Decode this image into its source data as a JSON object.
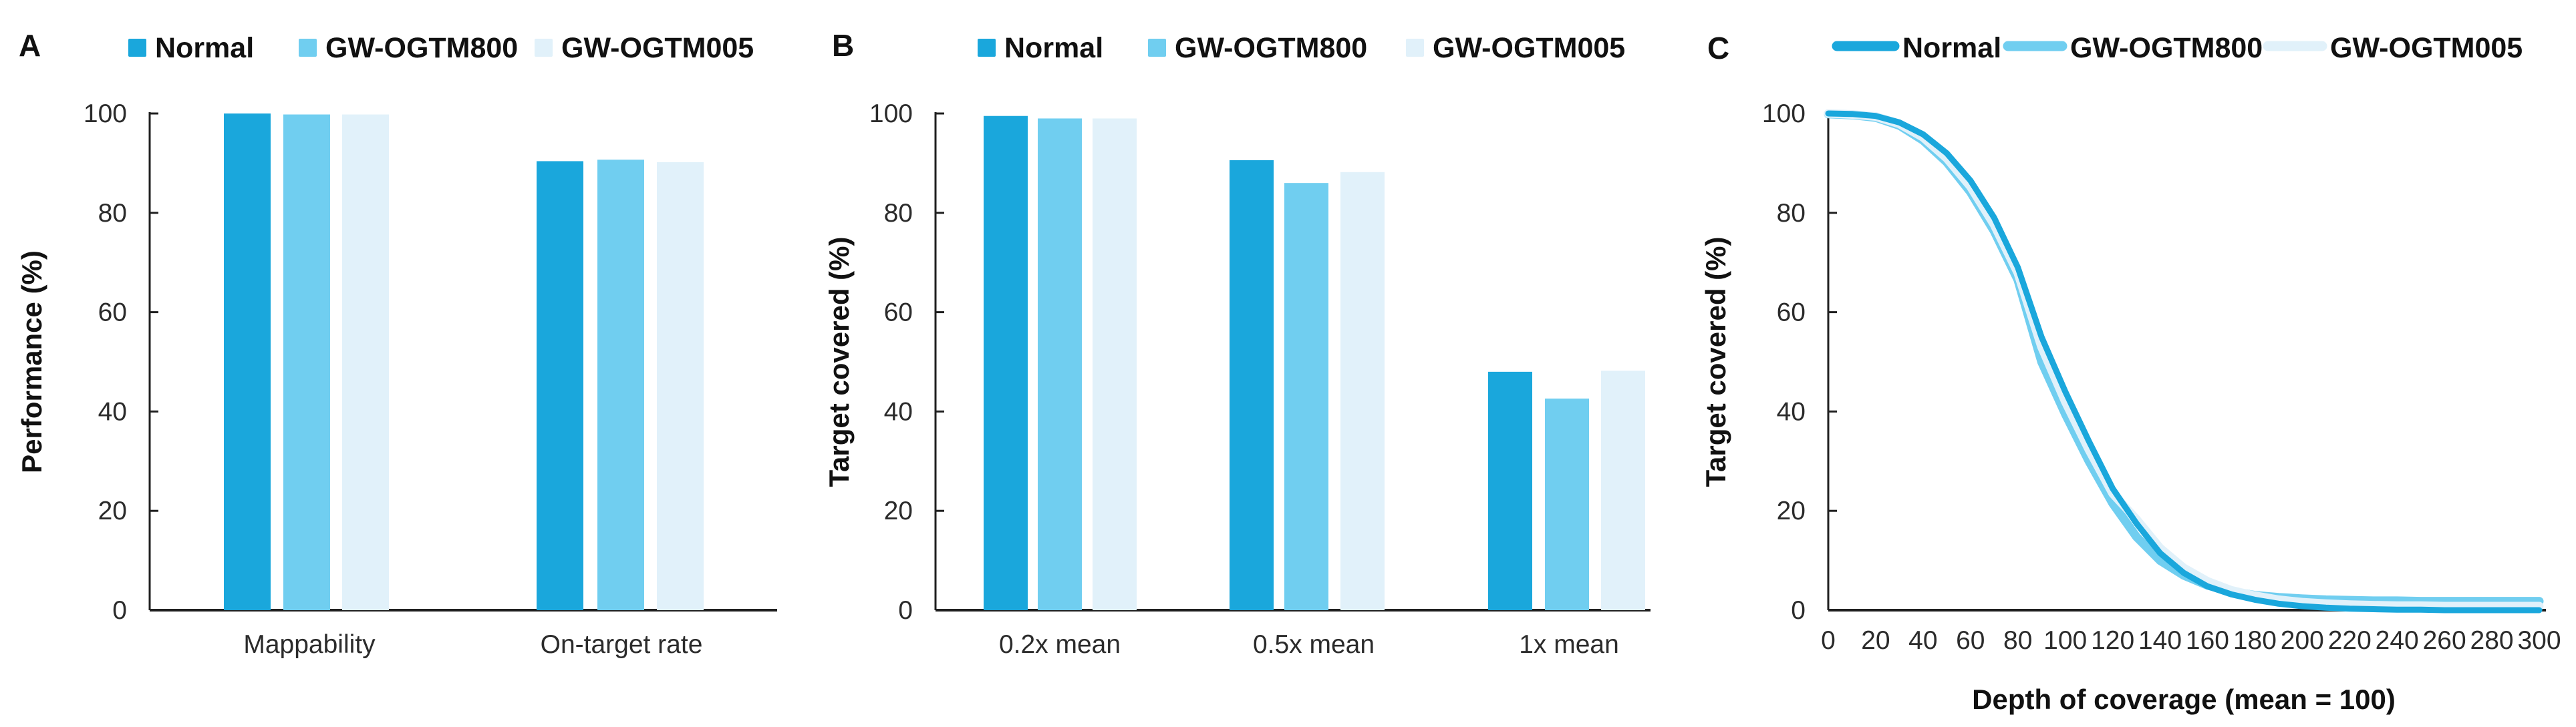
{
  "panel_labels": [
    "A",
    "B",
    "C"
  ],
  "colors": {
    "normal": "#1AA7DC",
    "ogtm800": "#70CEF0",
    "ogtm005": "#E1F1FA",
    "axis": "#1f1f1f"
  },
  "legend_names": [
    "Normal",
    "GW-OGTM800",
    "GW-OGTM005"
  ],
  "chart_data": [
    {
      "type": "bar",
      "title": "",
      "categories": [
        "Mappability",
        "On-target rate"
      ],
      "series": [
        {
          "name": "Normal",
          "values": [
            100,
            90.4
          ]
        },
        {
          "name": "GW-OGTM800",
          "values": [
            99.8,
            90.7
          ]
        },
        {
          "name": "GW-OGTM005",
          "values": [
            99.8,
            90.2
          ]
        }
      ],
      "xlabel": "",
      "ylabel": "Performance (%)",
      "ylim": [
        0,
        100
      ],
      "yticks": [
        0,
        20,
        40,
        60,
        80,
        100
      ],
      "grid": false,
      "legend_position": "top"
    },
    {
      "type": "bar",
      "title": "",
      "categories": [
        "0.2x mean",
        "0.5x mean",
        "1x mean"
      ],
      "series": [
        {
          "name": "Normal",
          "values": [
            99.5,
            90.6,
            48.0
          ]
        },
        {
          "name": "GW-OGTM800",
          "values": [
            99.0,
            86.0,
            42.6
          ]
        },
        {
          "name": "GW-OGTM005",
          "values": [
            99.0,
            88.2,
            48.2
          ]
        }
      ],
      "xlabel": "",
      "ylabel": "Target covered (%)",
      "ylim": [
        0,
        100
      ],
      "yticks": [
        0,
        20,
        40,
        60,
        80,
        100
      ],
      "grid": false,
      "legend_position": "top"
    },
    {
      "type": "line",
      "title": "",
      "x": [
        0,
        10,
        20,
        30,
        40,
        50,
        60,
        70,
        80,
        90,
        100,
        110,
        120,
        130,
        140,
        150,
        160,
        170,
        180,
        190,
        200,
        210,
        220,
        230,
        240,
        250,
        260,
        270,
        280,
        290,
        300
      ],
      "series": [
        {
          "name": "Normal",
          "values": [
            100,
            99.9,
            99.5,
            98.2,
            95.8,
            92,
            86.5,
            79,
            69,
            55,
            44,
            34,
            24.5,
            17.5,
            11.5,
            7.5,
            4.8,
            3.2,
            2.1,
            1.3,
            0.8,
            0.5,
            0.3,
            0.2,
            0.1,
            0.1,
            0,
            0,
            0,
            0,
            0
          ]
        },
        {
          "name": "GW-OGTM800",
          "values": [
            99.9,
            99.7,
            99.2,
            97.6,
            94.6,
            90.2,
            84.2,
            76.3,
            66.5,
            50,
            39.5,
            30,
            21.5,
            14.8,
            10,
            7,
            5,
            3.8,
            3,
            2.6,
            2.3,
            2.1,
            2,
            1.9,
            1.9,
            1.8,
            1.8,
            1.8,
            1.8,
            1.8,
            1.8
          ]
        },
        {
          "name": "GW-OGTM005",
          "values": [
            100,
            99.8,
            99.4,
            97.9,
            95.2,
            91,
            85.3,
            77.6,
            67.9,
            53,
            42,
            32.3,
            23.5,
            18.3,
            12.5,
            8.5,
            5.8,
            4,
            2.9,
            2.1,
            1.6,
            1.3,
            1.1,
            1,
            0.9,
            0.9,
            0.8,
            0.8,
            0.8,
            0.8,
            0.8
          ]
        }
      ],
      "xlabel": "Depth of coverage (mean = 100)",
      "ylabel": "Target covered (%)",
      "xlim": [
        0,
        300
      ],
      "ylim": [
        0,
        100
      ],
      "xticks": [
        0,
        20,
        40,
        60,
        80,
        100,
        120,
        140,
        160,
        180,
        200,
        220,
        240,
        260,
        280,
        300
      ],
      "yticks": [
        0,
        20,
        40,
        60,
        80,
        100
      ],
      "grid": false,
      "legend_position": "top"
    }
  ]
}
